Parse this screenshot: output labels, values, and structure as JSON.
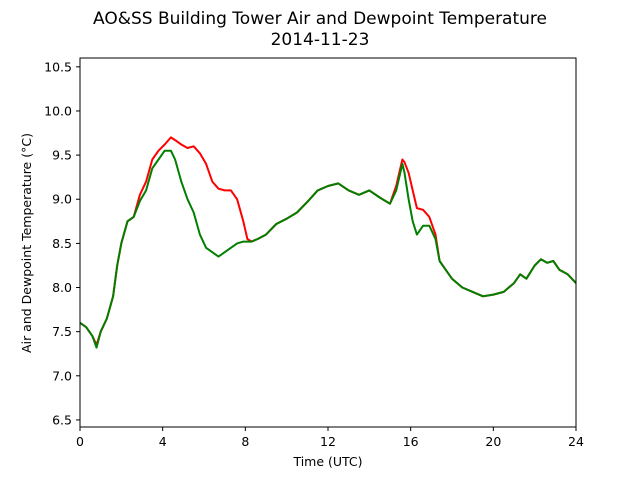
{
  "chart_data": {
    "type": "line",
    "title": "AO&SS Building Tower Air and Dewpoint Temperature",
    "subtitle": "2014-11-23",
    "xlabel": "Time (UTC)",
    "ylabel": "Air and Dewpoint Temperature (°C)",
    "xlim": [
      0,
      24
    ],
    "ylim": [
      6.42,
      10.6
    ],
    "xticks": [
      0,
      4,
      8,
      12,
      16,
      20,
      24
    ],
    "yticks": [
      6.5,
      7.0,
      7.5,
      8.0,
      8.5,
      9.0,
      9.5,
      10.0,
      10.5
    ],
    "ytick_labels": [
      "6.5",
      "7.0",
      "7.5",
      "8.0",
      "8.5",
      "9.0",
      "9.5",
      "10.0",
      "10.5"
    ],
    "grid": false,
    "series": [
      {
        "color": "#ff0000",
        "x": [
          0,
          0.3,
          0.6,
          0.8,
          1.0,
          1.3,
          1.6,
          1.8,
          2.0,
          2.3,
          2.6,
          2.9,
          3.2,
          3.5,
          3.8,
          4.1,
          4.4,
          4.6,
          4.9,
          5.2,
          5.5,
          5.8,
          6.1,
          6.4,
          6.7,
          7.0,
          7.3,
          7.6,
          7.9,
          8.1,
          8.3,
          8.6,
          9.0,
          9.5,
          10.0,
          10.5,
          11.0,
          11.5,
          12.0,
          12.5,
          13.0,
          13.5,
          14.0,
          14.5,
          15.0,
          15.3,
          15.5,
          15.6,
          15.7,
          15.9,
          16.1,
          16.3,
          16.6,
          16.9,
          17.2,
          17.4,
          17.7,
          18.0,
          18.5,
          19.0,
          19.5,
          20.0,
          20.5,
          21.0,
          21.3,
          21.6,
          22.0,
          22.3,
          22.6,
          22.9,
          23.2,
          23.6,
          24.0
        ],
        "y": [
          7.6,
          7.55,
          7.45,
          7.35,
          7.5,
          7.65,
          7.9,
          8.25,
          8.5,
          8.75,
          8.8,
          9.05,
          9.2,
          9.45,
          9.55,
          9.62,
          9.7,
          9.67,
          9.62,
          9.58,
          9.6,
          9.52,
          9.4,
          9.2,
          9.12,
          9.1,
          9.1,
          9.0,
          8.75,
          8.55,
          8.52,
          8.55,
          8.6,
          8.72,
          8.78,
          8.85,
          8.97,
          9.1,
          9.15,
          9.18,
          9.1,
          9.05,
          9.1,
          9.02,
          8.95,
          9.15,
          9.35,
          9.45,
          9.42,
          9.3,
          9.1,
          8.9,
          8.88,
          8.8,
          8.6,
          8.3,
          8.2,
          8.1,
          8.0,
          7.95,
          7.9,
          7.92,
          7.95,
          8.05,
          8.15,
          8.1,
          8.25,
          8.32,
          8.28,
          8.3,
          8.2,
          8.15,
          8.05
        ]
      },
      {
        "color": "#008000",
        "x": [
          0,
          0.3,
          0.6,
          0.8,
          1.0,
          1.3,
          1.6,
          1.8,
          2.0,
          2.3,
          2.6,
          2.9,
          3.2,
          3.5,
          3.8,
          4.1,
          4.4,
          4.6,
          4.9,
          5.2,
          5.5,
          5.8,
          6.1,
          6.4,
          6.7,
          7.0,
          7.3,
          7.6,
          7.9,
          8.1,
          8.3,
          8.6,
          9.0,
          9.5,
          10.0,
          10.5,
          11.0,
          11.5,
          12.0,
          12.5,
          13.0,
          13.5,
          14.0,
          14.5,
          15.0,
          15.3,
          15.5,
          15.6,
          15.7,
          15.9,
          16.1,
          16.3,
          16.6,
          16.9,
          17.2,
          17.4,
          17.7,
          18.0,
          18.5,
          19.0,
          19.5,
          20.0,
          20.5,
          21.0,
          21.3,
          21.6,
          22.0,
          22.3,
          22.6,
          22.9,
          23.2,
          23.6,
          24.0
        ],
        "y": [
          7.6,
          7.55,
          7.45,
          7.32,
          7.5,
          7.65,
          7.9,
          8.25,
          8.5,
          8.75,
          8.8,
          8.98,
          9.1,
          9.35,
          9.45,
          9.55,
          9.55,
          9.45,
          9.2,
          9.0,
          8.85,
          8.6,
          8.45,
          8.4,
          8.35,
          8.4,
          8.45,
          8.5,
          8.52,
          8.52,
          8.52,
          8.55,
          8.6,
          8.72,
          8.78,
          8.85,
          8.97,
          9.1,
          9.15,
          9.18,
          9.1,
          9.05,
          9.1,
          9.02,
          8.95,
          9.1,
          9.3,
          9.4,
          9.3,
          9.0,
          8.75,
          8.6,
          8.7,
          8.7,
          8.55,
          8.3,
          8.2,
          8.1,
          8.0,
          7.95,
          7.9,
          7.92,
          7.95,
          8.05,
          8.15,
          8.1,
          8.25,
          8.32,
          8.28,
          8.3,
          8.2,
          8.15,
          8.05
        ]
      }
    ]
  }
}
